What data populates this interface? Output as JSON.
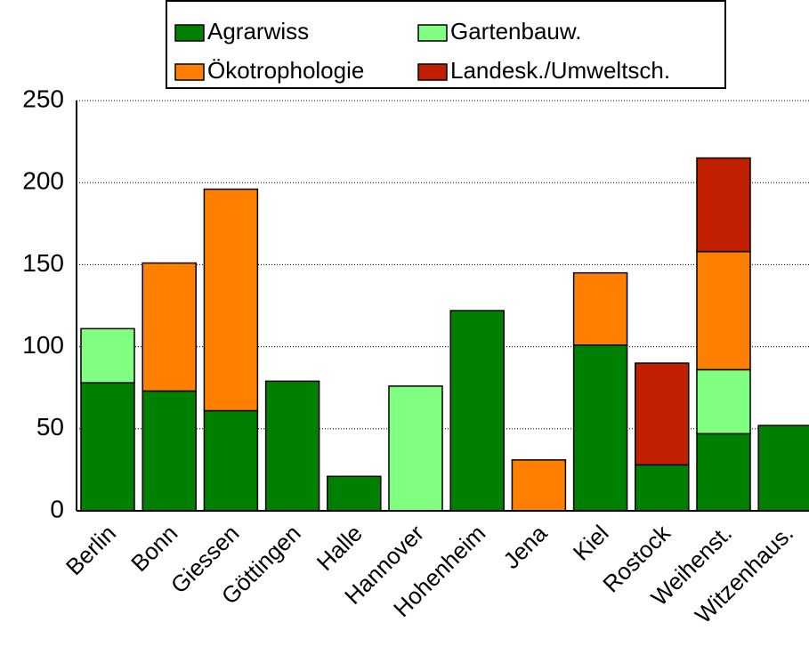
{
  "chart_data": {
    "type": "stacked_bar",
    "categories": [
      "Berlin",
      "Bonn",
      "Giessen",
      "Göttingen",
      "Halle",
      "Hannover",
      "Hohenheim",
      "Jena",
      "Kiel",
      "Rostock",
      "Weihenst.",
      "Witzenhaus."
    ],
    "series": [
      {
        "name": "Agrarwiss",
        "color": "#008000",
        "values": [
          78,
          73,
          61,
          79,
          21,
          null,
          122,
          null,
          101,
          28,
          47,
          52
        ]
      },
      {
        "name": "Gartenbauw.",
        "color": "#80ff80",
        "values": [
          33,
          null,
          null,
          null,
          null,
          76,
          null,
          null,
          null,
          null,
          39,
          null
        ]
      },
      {
        "name": "Ökotrophologie",
        "color": "#ff8000",
        "values": [
          null,
          78,
          135,
          null,
          null,
          null,
          null,
          31,
          44,
          null,
          72,
          null
        ]
      },
      {
        "name": "Landesk./Umweltsch.",
        "color": "#c02000",
        "values": [
          null,
          null,
          null,
          null,
          null,
          null,
          null,
          null,
          null,
          62,
          57,
          null
        ]
      }
    ],
    "ylim": [
      0,
      250
    ],
    "yticks": [
      0,
      50,
      100,
      150,
      200,
      250
    ],
    "grid": true
  }
}
